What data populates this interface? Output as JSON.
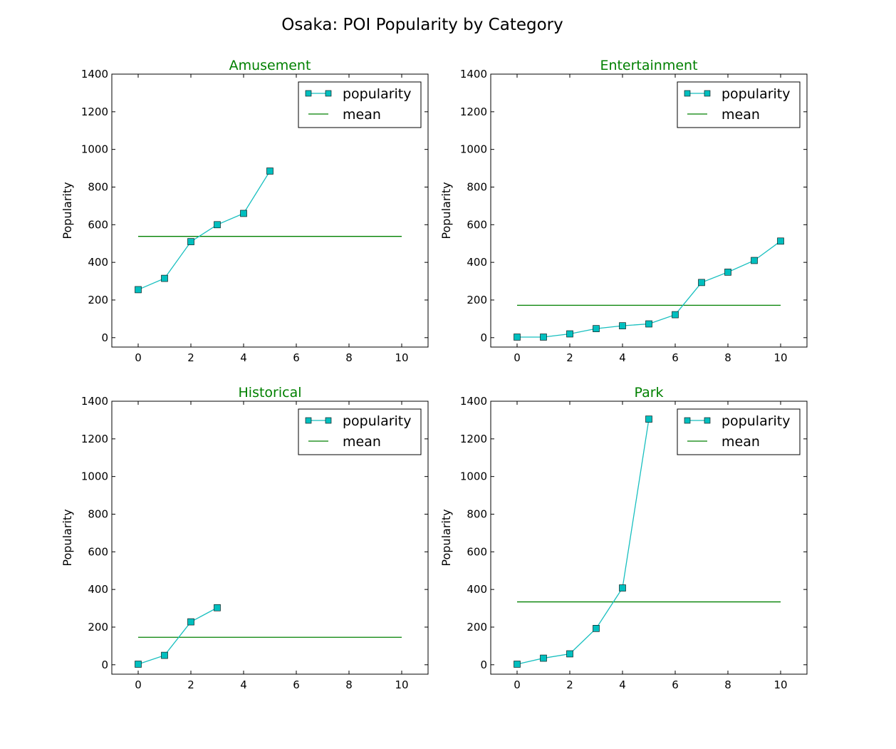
{
  "figure": {
    "title": "Osaka: POI Popularity by Category"
  },
  "colors": {
    "popularity": "#17bfbf",
    "marker_fill": "#00bfbf",
    "mean": "#008000",
    "title": "#008000"
  },
  "chart_data": [
    {
      "type": "line",
      "title": "Amusement",
      "xlabel": "",
      "ylabel": "Popularity",
      "xlim": [
        -1,
        11
      ],
      "ylim": [
        -50,
        1400
      ],
      "xticks": [
        0,
        2,
        4,
        6,
        8,
        10
      ],
      "yticks": [
        0,
        200,
        400,
        600,
        800,
        1000,
        1200,
        1400
      ],
      "legend": "upper-right",
      "series": [
        {
          "name": "popularity",
          "x": [
            0,
            1,
            2,
            3,
            4,
            5
          ],
          "values": [
            255,
            315,
            510,
            600,
            660,
            885
          ]
        }
      ],
      "mean": {
        "name": "mean",
        "value": 538,
        "x": [
          0,
          10
        ]
      }
    },
    {
      "type": "line",
      "title": "Entertainment",
      "xlabel": "",
      "ylabel": "Popularity",
      "xlim": [
        -1,
        11
      ],
      "ylim": [
        -50,
        1400
      ],
      "xticks": [
        0,
        2,
        4,
        6,
        8,
        10
      ],
      "yticks": [
        0,
        200,
        400,
        600,
        800,
        1000,
        1200,
        1400
      ],
      "legend": "upper-right",
      "series": [
        {
          "name": "popularity",
          "x": [
            0,
            1,
            2,
            3,
            4,
            5,
            6,
            7,
            8,
            9,
            10
          ],
          "values": [
            3,
            3,
            20,
            48,
            63,
            73,
            122,
            293,
            348,
            410,
            513
          ]
        }
      ],
      "mean": {
        "name": "mean",
        "value": 172,
        "x": [
          0,
          10
        ]
      }
    },
    {
      "type": "line",
      "title": "Historical",
      "xlabel": "",
      "ylabel": "Popularity",
      "xlim": [
        -1,
        11
      ],
      "ylim": [
        -50,
        1400
      ],
      "xticks": [
        0,
        2,
        4,
        6,
        8,
        10
      ],
      "yticks": [
        0,
        200,
        400,
        600,
        800,
        1000,
        1200,
        1400
      ],
      "legend": "upper-right",
      "series": [
        {
          "name": "popularity",
          "x": [
            0,
            1,
            2,
            3
          ],
          "values": [
            3,
            50,
            228,
            303
          ]
        }
      ],
      "mean": {
        "name": "mean",
        "value": 146,
        "x": [
          0,
          10
        ]
      }
    },
    {
      "type": "line",
      "title": "Park",
      "xlabel": "",
      "ylabel": "Popularity",
      "xlim": [
        -1,
        11
      ],
      "ylim": [
        -50,
        1400
      ],
      "xticks": [
        0,
        2,
        4,
        6,
        8,
        10
      ],
      "yticks": [
        0,
        200,
        400,
        600,
        800,
        1000,
        1200,
        1400
      ],
      "legend": "upper-right",
      "series": [
        {
          "name": "popularity",
          "x": [
            0,
            1,
            2,
            3,
            4,
            5
          ],
          "values": [
            3,
            35,
            58,
            193,
            408,
            1305
          ]
        }
      ],
      "mean": {
        "name": "mean",
        "value": 334,
        "x": [
          0,
          10
        ]
      }
    }
  ]
}
